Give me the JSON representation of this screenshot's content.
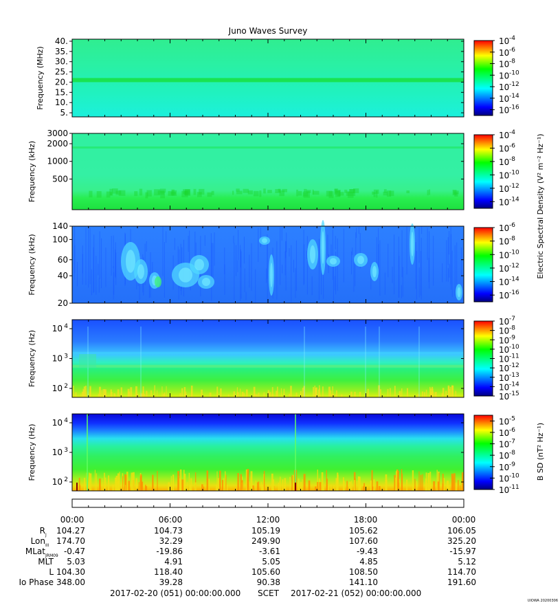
{
  "title": "Juno Waves Survey",
  "stamp": "UIOWA 20200306",
  "colorbar_labels": {
    "electric": "Electric Spectral Density (V² m⁻² Hz⁻¹)",
    "magnetic": "B SD (nT² Hz⁻¹)"
  },
  "chart_data": [
    {
      "type": "heatmap",
      "panel": 1,
      "ylabel": "Frequency (MHz)",
      "y_scale": "linear",
      "y_ticks": [
        "40.",
        "35.",
        "30.",
        "25.",
        "20.",
        "15.",
        "10.",
        "5."
      ],
      "y_tick_values": [
        40,
        35,
        30,
        25,
        20,
        15,
        10,
        5
      ],
      "ylim": [
        3,
        41
      ],
      "colorbar_ticks": [
        "-4",
        "-6",
        "-8",
        "-10",
        "-12",
        "-14",
        "-16"
      ],
      "colorbar_range_exp": [
        -17,
        -4
      ],
      "features": "uniform background near 1e-13 with a bright band near 21 MHz"
    },
    {
      "type": "heatmap",
      "panel": 2,
      "ylabel": "Frequency (kHz)",
      "y_scale": "log",
      "y_ticks": [
        "3000",
        "2000",
        "1000",
        "500"
      ],
      "y_tick_values": [
        3000,
        2000,
        1000,
        500
      ],
      "ylim": [
        150,
        3000
      ],
      "colorbar_ticks": [
        "-4",
        "-6",
        "-8",
        "-10",
        "-12",
        "-14"
      ],
      "colorbar_range_exp": [
        -15,
        -4
      ],
      "features": "background near 1e-12, band near 1700 kHz, enhanced emission below 300 kHz"
    },
    {
      "type": "heatmap",
      "panel": 3,
      "ylabel": "Frequency (kHz)",
      "y_scale": "log",
      "y_ticks": [
        "140",
        "100",
        "60",
        "40",
        "20"
      ],
      "y_tick_values": [
        140,
        100,
        60,
        40,
        20
      ],
      "ylim": [
        20,
        140
      ],
      "colorbar_ticks": [
        "-6",
        "-8",
        "-10",
        "-12",
        "-14",
        "-16"
      ],
      "colorbar_range_exp": [
        -17,
        -6
      ],
      "features": "blue background with patchy cyan emissions between 30 and 100 kHz"
    },
    {
      "type": "heatmap",
      "panel": 4,
      "ylabel": "Frequency (Hz)",
      "y_scale": "log",
      "y_ticks": [
        "10",
        "10",
        "10"
      ],
      "y_tick_exps": [
        "4",
        "3",
        "2"
      ],
      "y_tick_values": [
        10000,
        1000,
        100
      ],
      "ylim": [
        50,
        20000
      ],
      "colorbar_ticks": [
        "-7",
        "-8",
        "-9",
        "-10",
        "-11",
        "-12",
        "-13",
        "-14",
        "-15"
      ],
      "colorbar_range_exp": [
        -15,
        -7
      ],
      "features": "blue above 1.5 kHz, cyan-green band near 500 Hz, green-yellow below 200 Hz"
    },
    {
      "type": "heatmap",
      "panel": 5,
      "ylabel": "Frequency (Hz)",
      "y_scale": "log",
      "y_ticks": [
        "10",
        "10",
        "10"
      ],
      "y_tick_exps": [
        "4",
        "3",
        "2"
      ],
      "y_tick_values": [
        10000,
        1000,
        100
      ],
      "ylim": [
        50,
        20000
      ],
      "colorbar_ticks": [
        "-5",
        "-6",
        "-7",
        "-8",
        "-9",
        "-10",
        "-11"
      ],
      "colorbar_range_exp": [
        -11,
        -4.5
      ],
      "features": "dark blue above 8 kHz, green 300 Hz to 3 kHz, yellow-orange bursts below 150 Hz"
    }
  ],
  "ephemeris": {
    "times": [
      "00:00",
      "06:00",
      "12:00",
      "18:00",
      "00:00"
    ],
    "rows": [
      {
        "label": "R",
        "sub": "J",
        "values": [
          "104.27",
          "104.73",
          "105.19",
          "105.62",
          "106.05"
        ]
      },
      {
        "label": "Lon",
        "sub": "III",
        "values": [
          "174.70",
          "32.29",
          "249.90",
          "107.60",
          "325.20"
        ]
      },
      {
        "label": "MLat",
        "sub": "JRM09",
        "values": [
          "-0.47",
          "-19.86",
          "-3.61",
          "-9.43",
          "-15.97"
        ]
      },
      {
        "label": "MLT",
        "sub": "",
        "values": [
          "5.03",
          "4.91",
          "5.05",
          "4.85",
          "5.12"
        ]
      },
      {
        "label": "L",
        "sub": "",
        "values": [
          "104.30",
          "118.40",
          "105.60",
          "108.50",
          "114.70"
        ]
      },
      {
        "label": "Io Phase",
        "sub": "",
        "values": [
          "348.00",
          "39.28",
          "90.38",
          "141.10",
          "191.60"
        ]
      }
    ]
  },
  "time_range": {
    "start": "2017-02-20 (051) 00:00:00.000",
    "label": "SCET",
    "end": "2017-02-21 (052) 00:00:00.000"
  }
}
